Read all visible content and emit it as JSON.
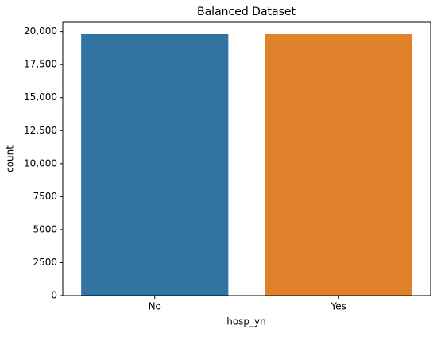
{
  "chart_data": {
    "type": "bar",
    "title": "Balanced Dataset",
    "x_label": "hosp_yn",
    "y_label": "count",
    "categories": [
      "No",
      "Yes"
    ],
    "values": [
      19800,
      19800
    ],
    "colors": [
      "#3274a1",
      "#e1812c"
    ],
    "ylim": [
      0,
      20700
    ],
    "yticks": [
      0,
      2500,
      5000,
      7500,
      {
        "value": 10000,
        "label": "10,000"
      },
      {
        "value": 12500,
        "label": "12,500"
      },
      {
        "value": 15000,
        "label": "15,000"
      },
      {
        "value": 17500,
        "label": "17,500"
      },
      {
        "value": 20000,
        "label": "20,000"
      }
    ]
  }
}
